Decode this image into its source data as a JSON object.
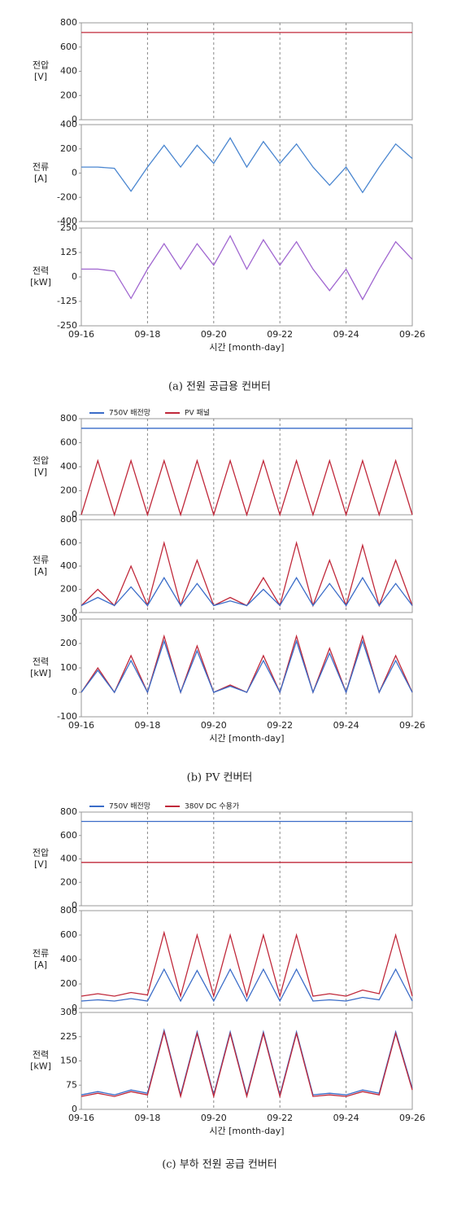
{
  "captions": [
    "(a) 전원 공급용 컨버터",
    "(b) PV 컨버터",
    "(c) 부하 전원 공급 컨버터"
  ],
  "chart_data": [
    {
      "type": "line",
      "ylabel": [
        "전압",
        "[V]"
      ],
      "x": [
        16,
        16.5,
        17,
        17.5,
        18,
        18.5,
        19,
        19.5,
        20,
        20.5,
        21,
        21.5,
        22,
        22.5,
        23,
        23.5,
        24,
        24.5,
        25,
        25.5,
        26
      ],
      "values": [
        720,
        720,
        720,
        720,
        720,
        720,
        720,
        720,
        720,
        720,
        720,
        720,
        720,
        720,
        720,
        720,
        720,
        720,
        720,
        720,
        720
      ],
      "color": "#c0283a",
      "xlim": [
        16,
        26
      ],
      "xticks": [
        18,
        20,
        22,
        24
      ],
      "ylim": [
        0,
        800
      ],
      "yticks": [
        0,
        200,
        400,
        600,
        800
      ]
    },
    {
      "type": "line",
      "ylabel": [
        "전류",
        "[A]"
      ],
      "x": [
        16,
        16.5,
        17,
        17.5,
        18,
        18.5,
        19,
        19.5,
        20,
        20.5,
        21,
        21.5,
        22,
        22.5,
        23,
        23.5,
        24,
        24.5,
        25,
        25.5,
        26
      ],
      "values": [
        50,
        50,
        40,
        -150,
        50,
        230,
        50,
        230,
        80,
        290,
        50,
        260,
        80,
        240,
        50,
        -100,
        50,
        -160,
        50,
        240,
        120
      ],
      "color": "#4a86d0",
      "xlim": [
        16,
        26
      ],
      "xticks": [
        18,
        20,
        22,
        24
      ],
      "ylim": [
        -400,
        400
      ],
      "yticks": [
        -400,
        -200,
        0,
        200,
        400
      ]
    },
    {
      "type": "line",
      "ylabel": [
        "전력",
        "[kW]"
      ],
      "x": [
        16,
        16.5,
        17,
        17.5,
        18,
        18.5,
        19,
        19.5,
        20,
        20.5,
        21,
        21.5,
        22,
        22.5,
        23,
        23.5,
        24,
        24.5,
        25,
        25.5,
        26
      ],
      "values": [
        40,
        40,
        30,
        -110,
        40,
        170,
        40,
        170,
        60,
        210,
        40,
        190,
        60,
        180,
        40,
        -70,
        40,
        -115,
        40,
        180,
        90
      ],
      "color": "#a066d0",
      "xlim": [
        16,
        26
      ],
      "xticks": [
        {
          "value": 16,
          "label": "09-16"
        },
        {
          "value": 18,
          "label": "09-18"
        },
        {
          "value": 20,
          "label": "09-20"
        },
        {
          "value": 22,
          "label": "09-22"
        },
        {
          "value": 24,
          "label": "09-24"
        },
        {
          "value": 26,
          "label": "09-26"
        }
      ],
      "xlabel": "시간 [month-day]",
      "ylim": [
        -250,
        250
      ],
      "yticks": [
        -250,
        -125,
        0,
        125,
        250
      ]
    },
    {
      "type": "line",
      "ylabel": [
        "전압",
        "[V]"
      ],
      "x": [
        16,
        16.5,
        17,
        17.5,
        18,
        18.5,
        19,
        19.5,
        20,
        20.5,
        21,
        21.5,
        22,
        22.5,
        23,
        23.5,
        24,
        24.5,
        25,
        25.5,
        26
      ],
      "series": [
        {
          "name": "750V 배전망",
          "color": "#3a6cc8",
          "values": [
            720,
            720,
            720,
            720,
            720,
            720,
            720,
            720,
            720,
            720,
            720,
            720,
            720,
            720,
            720,
            720,
            720,
            720,
            720,
            720,
            720
          ]
        },
        {
          "name": "PV 패널",
          "color": "#c0283a",
          "values": [
            0,
            450,
            0,
            450,
            0,
            450,
            0,
            450,
            0,
            450,
            0,
            450,
            0,
            450,
            0,
            450,
            0,
            450,
            0,
            450,
            0
          ]
        }
      ],
      "xlim": [
        16,
        26
      ],
      "xticks": [
        18,
        20,
        22,
        24
      ],
      "ylim": [
        0,
        800
      ],
      "yticks": [
        0,
        200,
        400,
        600,
        800
      ]
    },
    {
      "type": "line",
      "ylabel": [
        "전류",
        "[A]"
      ],
      "x": [
        16,
        16.5,
        17,
        17.5,
        18,
        18.5,
        19,
        19.5,
        20,
        20.5,
        21,
        21.5,
        22,
        22.5,
        23,
        23.5,
        24,
        24.5,
        25,
        25.5,
        26
      ],
      "series": [
        {
          "color": "#c0283a",
          "values": [
            60,
            200,
            60,
            400,
            60,
            600,
            60,
            450,
            60,
            130,
            60,
            300,
            60,
            600,
            60,
            450,
            60,
            580,
            60,
            450,
            60
          ]
        },
        {
          "color": "#3a6cc8",
          "values": [
            60,
            130,
            60,
            220,
            60,
            300,
            60,
            250,
            60,
            100,
            60,
            200,
            60,
            300,
            60,
            250,
            60,
            300,
            60,
            250,
            60
          ]
        }
      ],
      "xlim": [
        16,
        26
      ],
      "xticks": [
        18,
        20,
        22,
        24
      ],
      "ylim": [
        0,
        800
      ],
      "yticks": [
        0,
        200,
        400,
        600,
        800
      ]
    },
    {
      "type": "line",
      "ylabel": [
        "전력",
        "[kW]"
      ],
      "x": [
        16,
        16.5,
        17,
        17.5,
        18,
        18.5,
        19,
        19.5,
        20,
        20.5,
        21,
        21.5,
        22,
        22.5,
        23,
        23.5,
        24,
        24.5,
        25,
        25.5,
        26
      ],
      "series": [
        {
          "color": "#c0283a",
          "values": [
            0,
            100,
            0,
            150,
            0,
            230,
            0,
            190,
            0,
            30,
            0,
            150,
            0,
            230,
            0,
            180,
            0,
            230,
            0,
            150,
            0
          ]
        },
        {
          "color": "#3a6cc8",
          "values": [
            0,
            90,
            0,
            130,
            0,
            210,
            0,
            170,
            0,
            25,
            0,
            130,
            0,
            210,
            0,
            160,
            0,
            210,
            0,
            130,
            0
          ]
        }
      ],
      "xlim": [
        16,
        26
      ],
      "xticks": [
        {
          "value": 16,
          "label": "09-16"
        },
        {
          "value": 18,
          "label": "09-18"
        },
        {
          "value": 20,
          "label": "09-20"
        },
        {
          "value": 22,
          "label": "09-22"
        },
        {
          "value": 24,
          "label": "09-24"
        },
        {
          "value": 26,
          "label": "09-26"
        }
      ],
      "xlabel": "시간 [month-day]",
      "ylim": [
        -100,
        300
      ],
      "yticks": [
        -100,
        0,
        100,
        200,
        300
      ]
    },
    {
      "type": "line",
      "ylabel": [
        "전압",
        "[V]"
      ],
      "x": [
        16,
        16.5,
        17,
        17.5,
        18,
        18.5,
        19,
        19.5,
        20,
        20.5,
        21,
        21.5,
        22,
        22.5,
        23,
        23.5,
        24,
        24.5,
        25,
        25.5,
        26
      ],
      "series": [
        {
          "name": "750V 배전망",
          "color": "#3a6cc8",
          "values": [
            720,
            720,
            720,
            720,
            720,
            720,
            720,
            720,
            720,
            720,
            720,
            720,
            720,
            720,
            720,
            720,
            720,
            720,
            720,
            720,
            720
          ]
        },
        {
          "name": "380V DC 수용가",
          "color": "#c0283a",
          "values": [
            370,
            370,
            370,
            370,
            370,
            370,
            370,
            370,
            370,
            370,
            370,
            370,
            370,
            370,
            370,
            370,
            370,
            370,
            370,
            370,
            370
          ]
        }
      ],
      "xlim": [
        16,
        26
      ],
      "xticks": [
        18,
        20,
        22,
        24
      ],
      "ylim": [
        0,
        800
      ],
      "yticks": [
        0,
        200,
        400,
        600,
        800
      ]
    },
    {
      "type": "line",
      "ylabel": [
        "전류",
        "[A]"
      ],
      "x": [
        16,
        16.5,
        17,
        17.5,
        18,
        18.5,
        19,
        19.5,
        20,
        20.5,
        21,
        21.5,
        22,
        22.5,
        23,
        23.5,
        24,
        24.5,
        25,
        25.5,
        26
      ],
      "series": [
        {
          "color": "#c0283a",
          "values": [
            100,
            120,
            100,
            130,
            110,
            620,
            100,
            600,
            100,
            600,
            100,
            600,
            100,
            600,
            100,
            120,
            100,
            150,
            120,
            600,
            100
          ]
        },
        {
          "color": "#3a6cc8",
          "values": [
            60,
            70,
            60,
            80,
            60,
            320,
            60,
            310,
            60,
            320,
            60,
            320,
            60,
            320,
            60,
            70,
            60,
            90,
            70,
            320,
            60
          ]
        }
      ],
      "xlim": [
        16,
        26
      ],
      "xticks": [
        18,
        20,
        22,
        24
      ],
      "ylim": [
        0,
        800
      ],
      "yticks": [
        0,
        200,
        400,
        600,
        800
      ]
    },
    {
      "type": "line",
      "ylabel": [
        "전력",
        "[kW]"
      ],
      "x": [
        16,
        16.5,
        17,
        17.5,
        18,
        18.5,
        19,
        19.5,
        20,
        20.5,
        21,
        21.5,
        22,
        22.5,
        23,
        23.5,
        24,
        24.5,
        25,
        25.5,
        26
      ],
      "series": [
        {
          "color": "#3a6cc8",
          "values": [
            45,
            55,
            45,
            60,
            50,
            245,
            45,
            240,
            45,
            240,
            45,
            240,
            45,
            240,
            45,
            50,
            45,
            60,
            50,
            240,
            65
          ]
        },
        {
          "color": "#c0283a",
          "values": [
            40,
            50,
            40,
            55,
            45,
            240,
            40,
            235,
            40,
            235,
            40,
            235,
            40,
            235,
            40,
            45,
            40,
            55,
            45,
            235,
            60
          ]
        }
      ],
      "xlim": [
        16,
        26
      ],
      "xticks": [
        {
          "value": 16,
          "label": "09-16"
        },
        {
          "value": 18,
          "label": "09-18"
        },
        {
          "value": 20,
          "label": "09-20"
        },
        {
          "value": 22,
          "label": "09-22"
        },
        {
          "value": 24,
          "label": "09-24"
        },
        {
          "value": 26,
          "label": "09-26"
        }
      ],
      "xlabel": "시간 [month-day]",
      "ylim": [
        0,
        300
      ],
      "yticks": [
        0,
        75,
        150,
        225,
        300
      ]
    }
  ]
}
